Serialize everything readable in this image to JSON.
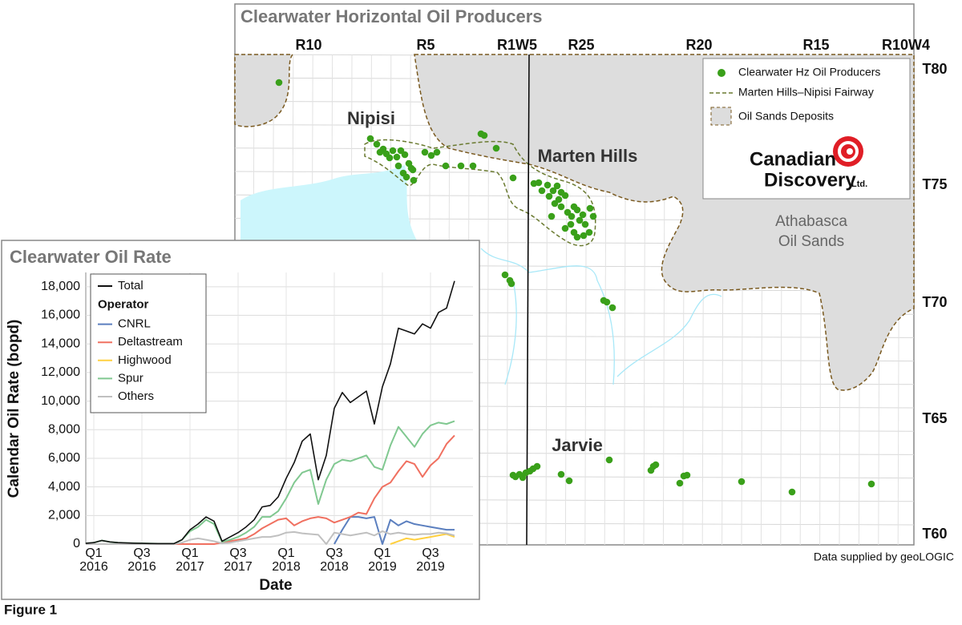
{
  "map": {
    "title": "Clearwater Horizontal Oil Producers",
    "ranges": [
      "R10",
      "R5",
      "R1W5",
      "R25",
      "R20",
      "R15",
      "R10W4"
    ],
    "townships": [
      "T80",
      "T75",
      "T70",
      "T65",
      "T60"
    ],
    "places": [
      "Nipisi",
      "Marten Hills",
      "Jarvie"
    ],
    "region_label": [
      "Athabasca",
      "Oil Sands"
    ],
    "legend": [
      "Clearwater Hz Oil Producers",
      "Marten Hills–Nipisi Fairway",
      "Oil Sands Deposits"
    ],
    "logo": {
      "name": [
        "Canadian",
        "Discovery"
      ],
      "suffix": "Ltd."
    },
    "credit": "Data supplied by geoLOGIC"
  },
  "figure_label": "Figure 1",
  "chart_data": {
    "type": "line",
    "title": "Clearwater Oil Rate",
    "xlabel": "Date",
    "ylabel": "Calendar Oil Rate (bopd)",
    "categories": [
      null,
      "Q1 2016",
      null,
      null,
      null,
      null,
      null,
      "Q3 2016",
      null,
      null,
      null,
      null,
      null,
      "Q1 2017",
      null,
      null,
      null,
      null,
      null,
      "Q3 2017",
      null,
      null,
      null,
      null,
      null,
      "Q1 2018",
      null,
      null,
      null,
      null,
      null,
      "Q3 2018",
      null,
      null,
      null,
      null,
      null,
      "Q1 2019",
      null,
      null,
      null,
      null,
      null,
      "Q3 2019",
      null,
      null,
      null
    ],
    "legend_title": "Operator",
    "legend": "upper left",
    "grid": true,
    "ylim": [
      0,
      19000
    ],
    "yticks": [
      0,
      {
        "value": 2000,
        "label": "2,000"
      },
      {
        "value": 4000,
        "label": "4,000"
      },
      {
        "value": 6000,
        "label": "6,000"
      },
      {
        "value": 8000,
        "label": "8,000"
      },
      {
        "value": 10000,
        "label": "10,000"
      },
      {
        "value": 12000,
        "label": "12,000"
      },
      {
        "value": 14000,
        "label": "14,000"
      },
      {
        "value": 16000,
        "label": "16,000"
      },
      {
        "value": 18000,
        "label": "18,000"
      }
    ],
    "series": [
      {
        "name": "Total",
        "color": "#111111",
        "values": [
          50,
          100,
          250,
          150,
          100,
          80,
          60,
          50,
          40,
          30,
          30,
          30,
          300,
          1000,
          1400,
          1900,
          1600,
          200,
          500,
          800,
          1200,
          1700,
          2600,
          2700,
          3300,
          4600,
          5700,
          7200,
          7700,
          4500,
          6200,
          9500,
          10600,
          9900,
          10300,
          10700,
          8400,
          11000,
          12600,
          15100,
          14900,
          14700,
          15400,
          15100,
          16200,
          16500,
          18400
        ]
      },
      {
        "name": "CNRL",
        "color": "#5b7fbf",
        "values": [
          null,
          null,
          null,
          null,
          null,
          null,
          null,
          null,
          null,
          null,
          null,
          null,
          null,
          null,
          null,
          null,
          null,
          null,
          null,
          null,
          null,
          null,
          null,
          null,
          null,
          null,
          null,
          null,
          null,
          null,
          null,
          0,
          1000,
          1900,
          1900,
          1800,
          1900,
          0,
          1700,
          1300,
          1600,
          1400,
          1300,
          1200,
          1100,
          1000,
          1000
        ]
      },
      {
        "name": "Deltastream",
        "color": "#f07060",
        "values": [
          0,
          0,
          0,
          0,
          0,
          0,
          0,
          0,
          0,
          0,
          0,
          0,
          0,
          0,
          0,
          0,
          0,
          100,
          200,
          300,
          400,
          700,
          1100,
          1400,
          1700,
          1800,
          1300,
          1600,
          1800,
          1900,
          1800,
          1500,
          1700,
          1900,
          2200,
          2100,
          3200,
          4000,
          4300,
          5100,
          5800,
          5600,
          4700,
          5500,
          6000,
          7000,
          7600
        ]
      },
      {
        "name": "Highwood",
        "color": "#ffd040",
        "values": [
          null,
          null,
          null,
          null,
          null,
          null,
          null,
          null,
          null,
          null,
          null,
          null,
          null,
          null,
          null,
          null,
          null,
          null,
          null,
          null,
          null,
          null,
          null,
          null,
          null,
          null,
          null,
          null,
          null,
          null,
          null,
          null,
          null,
          null,
          null,
          null,
          null,
          null,
          0,
          200,
          400,
          300,
          400,
          500,
          600,
          700,
          500
        ]
      },
      {
        "name": "Spur",
        "color": "#80c890",
        "values": [
          50,
          100,
          250,
          150,
          100,
          80,
          60,
          50,
          40,
          30,
          30,
          30,
          300,
          900,
          1200,
          1700,
          1400,
          150,
          300,
          500,
          800,
          1200,
          1900,
          1900,
          2300,
          3200,
          4300,
          5000,
          5200,
          2800,
          4500,
          5600,
          5900,
          5800,
          6000,
          6200,
          5400,
          5200,
          6900,
          8200,
          7500,
          6800,
          7700,
          8300,
          8500,
          8400,
          8600
        ]
      },
      {
        "name": "Others",
        "color": "#c0c0c0",
        "values": [
          0,
          0,
          0,
          0,
          0,
          0,
          0,
          0,
          0,
          0,
          0,
          0,
          100,
          300,
          400,
          300,
          200,
          50,
          100,
          200,
          300,
          400,
          500,
          500,
          600,
          800,
          850,
          750,
          700,
          650,
          0,
          800,
          700,
          600,
          700,
          800,
          600,
          900,
          700,
          800,
          700,
          650,
          700,
          700,
          800,
          750,
          600
        ]
      }
    ]
  }
}
